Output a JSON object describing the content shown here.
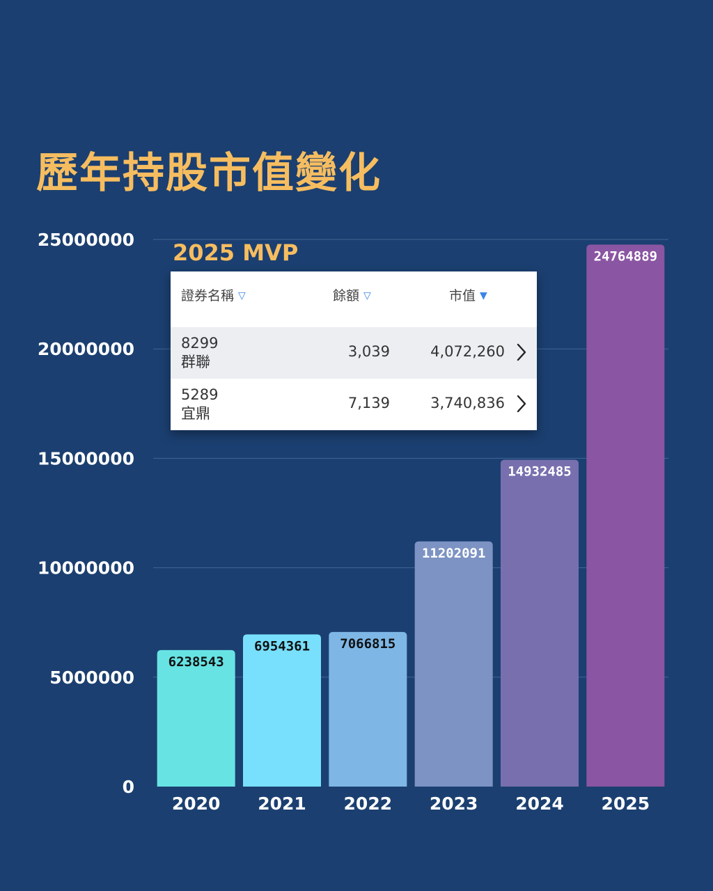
{
  "title": "歷年持股市值變化",
  "chart_data": {
    "type": "bar",
    "categories": [
      "2020",
      "2021",
      "2022",
      "2023",
      "2024",
      "2025"
    ],
    "values": [
      6238543,
      6954361,
      7066815,
      11202091,
      14932485,
      24764889
    ],
    "data_labels": [
      "6238543",
      "6954361",
      "7066815",
      "11202091",
      "14932485",
      "24764889"
    ],
    "bar_colors": [
      "#67e3e4",
      "#78dffc",
      "#7eb7e6",
      "#7c93c3",
      "#7870ae",
      "#8a55a2"
    ],
    "label_colors": [
      "#111111",
      "#111111",
      "#111111",
      "#ffffff",
      "#ffffff",
      "#ffffff"
    ],
    "yticks": [
      0,
      5000000,
      10000000,
      15000000,
      20000000,
      25000000
    ],
    "ytick_labels": [
      "0",
      "5000000",
      "10000000",
      "15000000",
      "20000000",
      "25000000"
    ],
    "ylim": [
      0,
      25000000
    ],
    "title": "",
    "xlabel": "",
    "ylabel": "",
    "grid": true,
    "legend": "none"
  },
  "mvp": {
    "title": "2025 MVP",
    "headers": {
      "name": "證券名稱",
      "qty": "餘額",
      "value": "市值",
      "sort_icon_name": "triangle-outline-icon",
      "sort_active_icon_name": "triangle-filled-icon",
      "sort_glyph": "▽",
      "sort_active_glyph": "▼"
    },
    "rows": [
      {
        "code": "8299",
        "name": "群聯",
        "qty": "3,039",
        "value": "4,072,260"
      },
      {
        "code": "5289",
        "name": "宜鼎",
        "qty": "7,139",
        "value": "3,740,836"
      }
    ]
  },
  "colors": {
    "background": "#1b3f70",
    "accent": "#f6bd60",
    "sort_icon": "#3a86e8"
  }
}
